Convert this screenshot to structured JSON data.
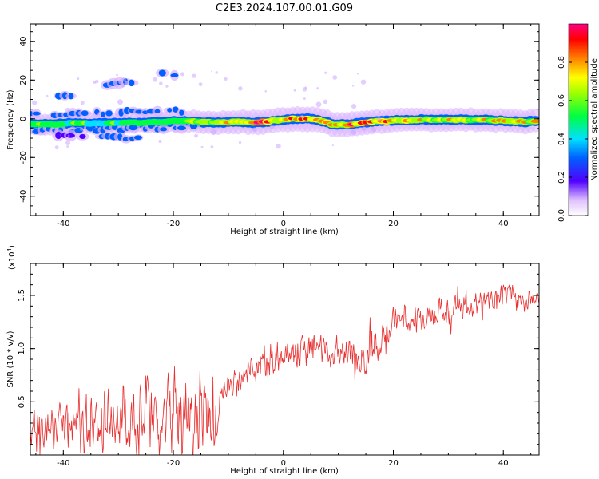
{
  "title": "C2E3.2024.107.00.01.G09",
  "chart_data": [
    {
      "type": "heatmap",
      "xlabel": "Height of straight line (km)",
      "ylabel": "Frequency (Hz)",
      "xlim": [
        -46,
        46.5
      ],
      "ylim": [
        -50,
        49
      ],
      "xticks": [
        -40,
        -20,
        0,
        20,
        40
      ],
      "yticks": [
        -40,
        -20,
        0,
        20,
        40
      ],
      "colorbar": {
        "label": "Normalized spectral amplitude",
        "range": [
          0,
          1
        ],
        "ticks": [
          0.0,
          0.2,
          0.4,
          0.6,
          0.8
        ],
        "colors": [
          "#ffffff",
          "#0000ff",
          "#00ffff",
          "#00ff00",
          "#ffff00",
          "#ff0000",
          "#ff0080"
        ]
      },
      "main_band": [
        {
          "x": -46,
          "f": -2.5,
          "amp": 0.55
        },
        {
          "x": -42,
          "f": -3,
          "amp": 0.55
        },
        {
          "x": -38,
          "f": -2,
          "amp": 0.5
        },
        {
          "x": -34,
          "f": -2.5,
          "amp": 0.55
        },
        {
          "x": -30,
          "f": -2,
          "amp": 0.5
        },
        {
          "x": -26,
          "f": -2,
          "amp": 0.45
        },
        {
          "x": -22,
          "f": -1.5,
          "amp": 0.5
        },
        {
          "x": -18,
          "f": -1,
          "amp": 0.55
        },
        {
          "x": -16,
          "f": -1.5,
          "amp": 0.65
        },
        {
          "x": -12,
          "f": -2,
          "amp": 0.7
        },
        {
          "x": -8,
          "f": -1.5,
          "amp": 0.75
        },
        {
          "x": -5,
          "f": -2,
          "amp": 0.85
        },
        {
          "x": -2,
          "f": -1,
          "amp": 0.8
        },
        {
          "x": 2,
          "f": 0,
          "amp": 0.85
        },
        {
          "x": 5,
          "f": 0,
          "amp": 0.9
        },
        {
          "x": 7,
          "f": -1,
          "amp": 0.8
        },
        {
          "x": 9,
          "f": -3,
          "amp": 0.85
        },
        {
          "x": 12,
          "f": -3,
          "amp": 0.85
        },
        {
          "x": 16,
          "f": -1.5,
          "amp": 0.8
        },
        {
          "x": 20,
          "f": -1,
          "amp": 0.75
        },
        {
          "x": 25,
          "f": -0.5,
          "amp": 0.7
        },
        {
          "x": 30,
          "f": -0.5,
          "amp": 0.7
        },
        {
          "x": 35,
          "f": -0.5,
          "amp": 0.7
        },
        {
          "x": 40,
          "f": -1,
          "amp": 0.7
        },
        {
          "x": 44,
          "f": -1.5,
          "amp": 0.75
        },
        {
          "x": 46.5,
          "f": -1,
          "amp": 0.7
        }
      ],
      "secondary_bands": [
        {
          "x": [
            -46,
            -15
          ],
          "f": -6,
          "amp": 0.4
        },
        {
          "x": [
            -46,
            -18
          ],
          "f": 2.5,
          "amp": 0.35
        },
        {
          "x": [
            -42,
            -36
          ],
          "f": -9,
          "amp": 0.25
        },
        {
          "x": [
            -33,
            -25
          ],
          "f": -10,
          "amp": 0.3
        },
        {
          "x": [
            -43,
            -38
          ],
          "f": 12,
          "amp": 0.3
        },
        {
          "x": [
            -32,
            -25
          ],
          "f": 18,
          "amp": 0.3
        },
        {
          "x": [
            -22,
            -19
          ],
          "f": 23,
          "amp": 0.3
        }
      ]
    },
    {
      "type": "line",
      "xlabel": "Height of straight line (km)",
      "ylabel": "SNR (10 * v/v)",
      "multiplier_label": "(x10",
      "multiplier_exp": "4",
      "multiplier_close": ")",
      "xlim": [
        -46,
        46.5
      ],
      "ylim": [
        0,
        1.8
      ],
      "xticks": [
        -40,
        -20,
        0,
        20,
        40
      ],
      "yticks": [
        0.5,
        1.0,
        1.5
      ],
      "line_color": "#e83030",
      "trend": [
        {
          "x": -46,
          "mean": 0.25,
          "amp": 0.25
        },
        {
          "x": -35,
          "mean": 0.28,
          "amp": 0.3
        },
        {
          "x": -25,
          "mean": 0.35,
          "amp": 0.45
        },
        {
          "x": -12,
          "mean": 0.38,
          "amp": 0.45
        },
        {
          "x": -11.5,
          "mean": 0.55,
          "amp": 0.15
        },
        {
          "x": -5,
          "mean": 0.85,
          "amp": 0.18
        },
        {
          "x": 5,
          "mean": 1.0,
          "amp": 0.15
        },
        {
          "x": 14,
          "mean": 0.95,
          "amp": 0.2
        },
        {
          "x": 16,
          "mean": 0.95,
          "amp": 0.3
        },
        {
          "x": 20,
          "mean": 1.25,
          "amp": 0.15
        },
        {
          "x": 30,
          "mean": 1.35,
          "amp": 0.15
        },
        {
          "x": 40,
          "mean": 1.5,
          "amp": 0.15
        },
        {
          "x": 46.5,
          "mean": 1.45,
          "amp": 0.1
        }
      ]
    }
  ]
}
